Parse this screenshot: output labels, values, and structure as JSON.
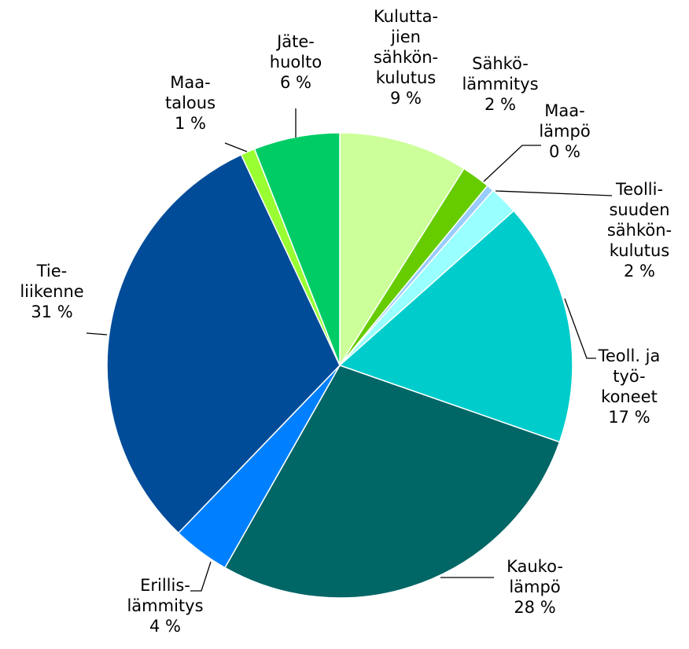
{
  "chart_data": {
    "type": "pie",
    "title": "",
    "start": "12 o'clock",
    "direction": "clockwise",
    "slices": [
      {
        "name": "Kuluttajien sähkönkulutus",
        "value": 9,
        "color": "#CCFF99",
        "label": [
          "Kulutta-",
          "jien",
          "sähkön-",
          "kulutus",
          "9 %"
        ]
      },
      {
        "name": "Sähkölämmitys",
        "value": 2,
        "color": "#66CC00",
        "label": [
          "Sähkö-",
          "lämmitys",
          "2 %"
        ]
      },
      {
        "name": "Maalämpö",
        "value": 0.5,
        "color": "#99CCFF",
        "label": [
          "Maa-",
          "lämpö",
          "0 %"
        ]
      },
      {
        "name": "Teollisuuden sähkönkulutus",
        "value": 2,
        "color": "#99FFFF",
        "label": [
          "Teolli-",
          "suuden",
          "sähkön-",
          "kulutus",
          "2 %"
        ]
      },
      {
        "name": "Teoll. ja työkoneet",
        "value": 17,
        "color": "#00CCCC",
        "label": [
          "Teoll. ja",
          "työ-",
          "koneet",
          "17 %"
        ]
      },
      {
        "name": "Kaukolämpö",
        "value": 28,
        "color": "#006666",
        "label": [
          "Kauko-",
          "lämpö",
          "28 %"
        ]
      },
      {
        "name": "Erillislämmitys",
        "value": 4,
        "color": "#0080FF",
        "label": [
          "Erillis-",
          "lämmitys",
          "4 %"
        ]
      },
      {
        "name": "Tieliikenne",
        "value": 31,
        "color": "#004C99",
        "label": [
          "Tie-",
          "liikenne",
          "31 %"
        ]
      },
      {
        "name": "Maatalous",
        "value": 1,
        "color": "#99FF33",
        "label": [
          "Maa-",
          "talous",
          "1 %"
        ]
      },
      {
        "name": "Jätehuolto",
        "value": 6,
        "color": "#00CC66",
        "label": [
          "Jäte-",
          "huolto",
          "6 %"
        ]
      }
    ]
  }
}
